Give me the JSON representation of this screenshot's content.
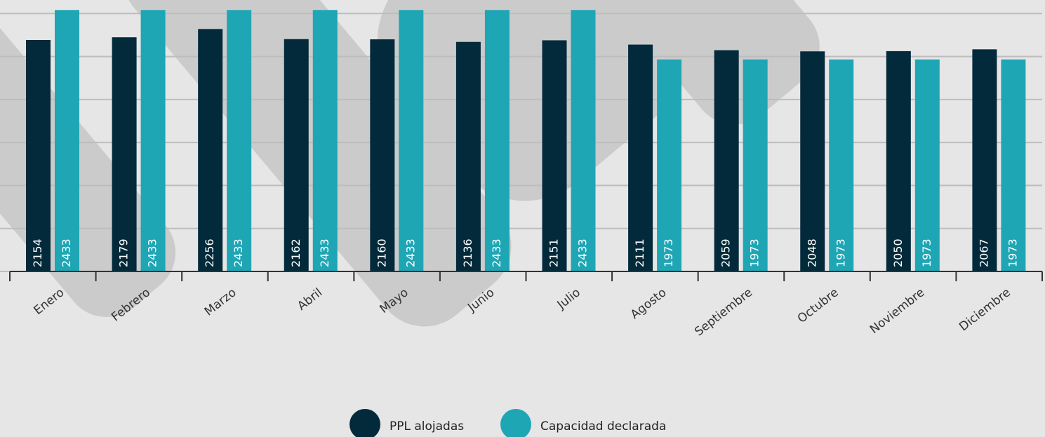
{
  "chart_data": {
    "type": "bar",
    "categories": [
      "Enero",
      "Febrero",
      "Marzo",
      "Abril",
      "Mayo",
      "Junio",
      "Julio",
      "Agosto",
      "Septiembre",
      "Octubre",
      "Noviembre",
      "Diciembre"
    ],
    "series": [
      {
        "name": "PPL alojadas",
        "color": "#022a3a",
        "values": [
          2154,
          2179,
          2256,
          2162,
          2160,
          2136,
          2151,
          2111,
          2059,
          2048,
          2050,
          2067
        ]
      },
      {
        "name": "Capacidad declarada",
        "color": "#1fa6b5",
        "values": [
          2433,
          2433,
          2433,
          2433,
          2433,
          2433,
          2433,
          1973,
          1973,
          1973,
          1973,
          1973
        ]
      }
    ],
    "ylim": [
      0,
      2526
    ],
    "yticks": [
      0,
      400,
      800,
      1200,
      1600,
      2000,
      2400
    ],
    "grid": true,
    "legend": "bottom"
  }
}
